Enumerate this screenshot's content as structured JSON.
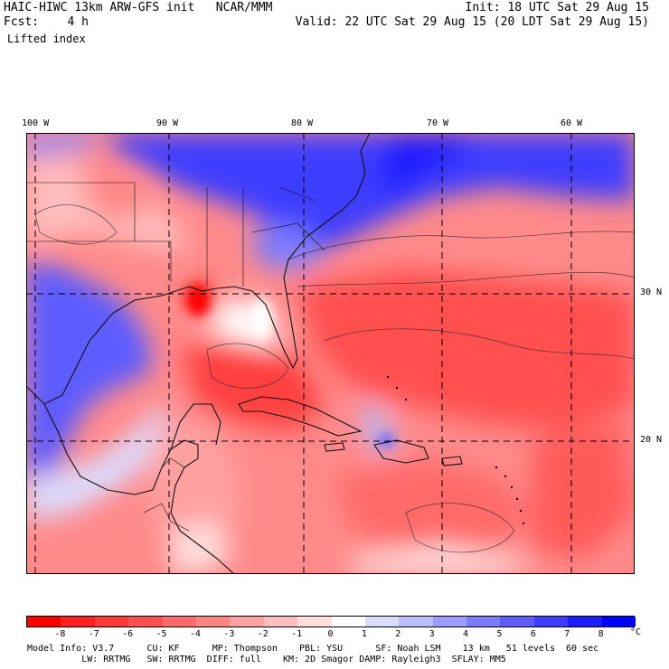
{
  "header": {
    "model_line": "HAIC-HIWC 13km ARW-GFS init   NCAR/MMM",
    "fcst_line": "Fcst:    4 h",
    "init_line": "Init: 18 UTC Sat 29 Aug 15",
    "valid_line": "Valid: 22 UTC Sat 29 Aug 15 (20 LDT Sat 29 Aug 15)",
    "field_name": "Lifted index"
  },
  "map": {
    "lon_labels": [
      "100 W",
      "90 W",
      "80 W",
      "70 W",
      "60 W"
    ],
    "lat_labels": [
      "30 N",
      "20 N"
    ]
  },
  "colorbar": {
    "labels": [
      "-8",
      "-7",
      "-6",
      "-5",
      "-4",
      "-3",
      "-2",
      "-1",
      "0",
      "1",
      "2",
      "3",
      "4",
      "5",
      "6",
      "7",
      "8"
    ],
    "unit": "°C",
    "colors": [
      "#ff0000",
      "#ff1f1f",
      "#ff3838",
      "#ff5050",
      "#ff6a6a",
      "#ff8585",
      "#ffa1a1",
      "#ffbdbd",
      "#ffdede",
      "#ffffff",
      "#dcdcff",
      "#bcbcff",
      "#9c9cff",
      "#7c7cff",
      "#5c5cff",
      "#3c3cff",
      "#1c1cff",
      "#0000ff"
    ]
  },
  "footer": {
    "line1": "Model Info: V3.7      CU: KF      MP: Thompson    PBL: YSU      SF: Noah LSM    13 km   51 levels  60 sec",
    "line2": "          LW: RRTMG   SW: RRTMG  DIFF: full    KM: 2D Smagor DAMP: Rayleigh3  SFLAY: MM5"
  }
}
